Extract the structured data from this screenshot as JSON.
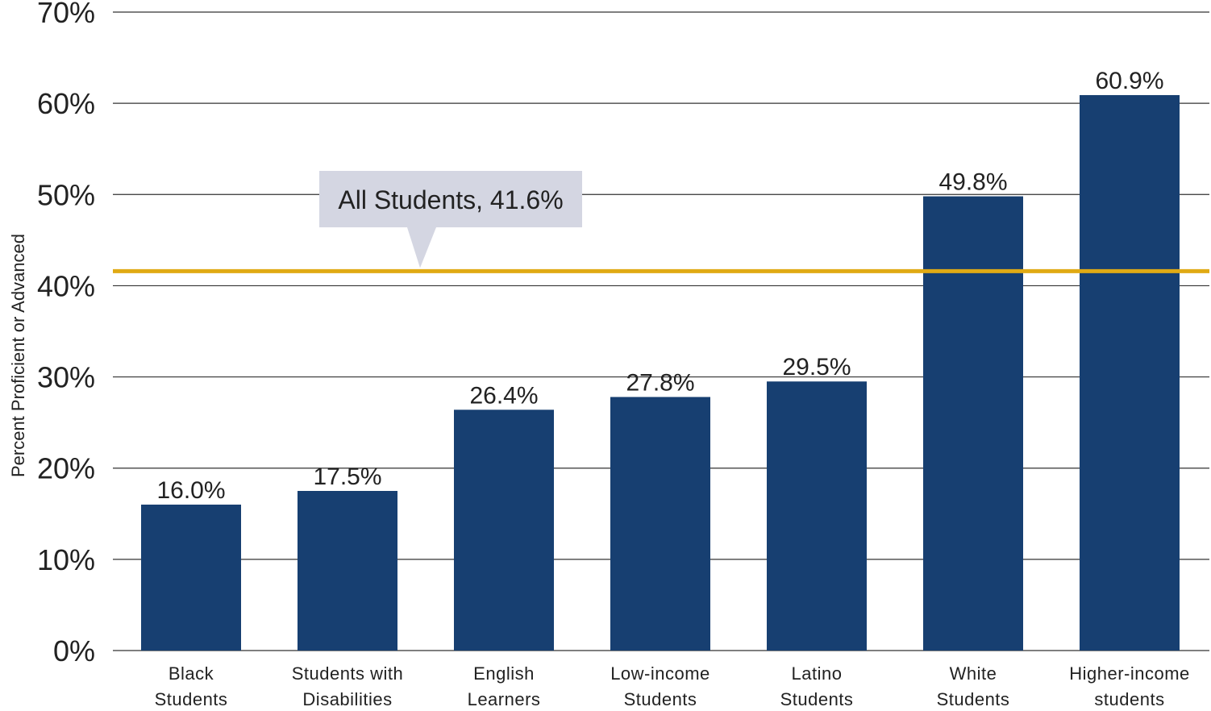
{
  "chart_data": {
    "type": "bar",
    "categories": [
      [
        "Black",
        "Students"
      ],
      [
        "Students with",
        "Disabilities"
      ],
      [
        "English",
        "Learners"
      ],
      [
        "Low-income",
        "Students"
      ],
      [
        "Latino",
        "Students"
      ],
      [
        "White",
        "Students"
      ],
      [
        "Higher-income",
        "students"
      ]
    ],
    "values": [
      16.0,
      17.5,
      26.4,
      27.8,
      29.5,
      49.8,
      60.9
    ],
    "data_labels": [
      "16.0%",
      "17.5%",
      "26.4%",
      "27.8%",
      "29.5%",
      "49.8%",
      "60.9%"
    ],
    "ylabel": "Percent Proficient or Advanced",
    "ylim": [
      0,
      70
    ],
    "yticks": [
      0,
      10,
      20,
      30,
      40,
      50,
      60,
      70
    ],
    "ytick_labels": [
      "0%",
      "10%",
      "20%",
      "30%",
      "40%",
      "50%",
      "60%",
      "70%"
    ],
    "grid": true,
    "reference_line": {
      "value": 41.6,
      "label": "All Students, 41.6%"
    },
    "colors": {
      "bar": "#173f71",
      "reference_line": "#e0aa14",
      "callout_bg": "#d4d6e2",
      "grid": "#333333"
    }
  }
}
